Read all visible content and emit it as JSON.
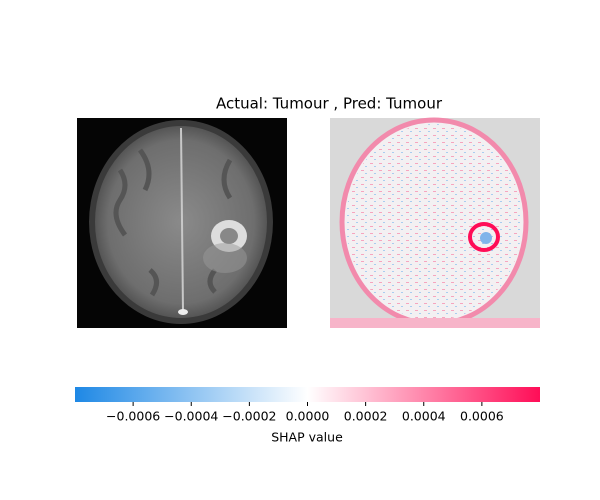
{
  "chart_data": {
    "type": "image",
    "title": "Actual: Tumour , Pred: Tumour",
    "xlabel": "SHAP value",
    "xlim": [
      -0.0008,
      0.0008
    ],
    "xticks": [
      {
        "value": -0.0006,
        "label": "−0.0006"
      },
      {
        "value": -0.0004,
        "label": "−0.0004"
      },
      {
        "value": -0.0002,
        "label": "−0.0002"
      },
      {
        "value": 0,
        "label": "0.0000"
      },
      0.0002,
      0.0004,
      0.0006
    ],
    "colors": [
      "#1e88e5",
      "#ffffff",
      "#ff0d57"
    ]
  }
}
